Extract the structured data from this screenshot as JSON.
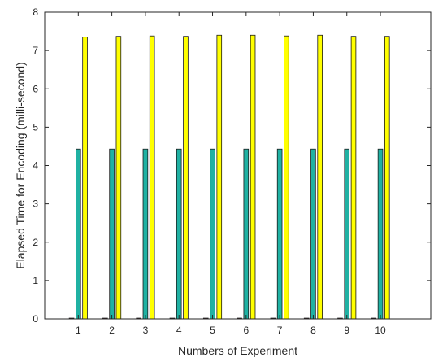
{
  "chart_data": {
    "type": "bar",
    "title": "",
    "xlabel": "Numbers of Experiment",
    "ylabel": "Elapsed Time for Encoding (milli-second)",
    "categories": [
      "1",
      "2",
      "3",
      "4",
      "5",
      "6",
      "7",
      "8",
      "9",
      "10"
    ],
    "xlim": [
      0,
      11.5
    ],
    "ylim": [
      0,
      8
    ],
    "yticks": [
      "0",
      "1",
      "2",
      "3",
      "4",
      "5",
      "6",
      "7",
      "8"
    ],
    "grid": false,
    "legend": "none",
    "series": [
      {
        "values": [
          0.02,
          0.02,
          0.02,
          0.02,
          0.02,
          0.02,
          0.02,
          0.02,
          0.02,
          0.02
        ],
        "color": "#c8102e"
      },
      {
        "values": [
          4.43,
          4.43,
          4.43,
          4.43,
          4.43,
          4.43,
          4.43,
          4.43,
          4.43,
          4.43
        ],
        "color": "#1fb1a3"
      },
      {
        "values": [
          7.35,
          7.37,
          7.38,
          7.37,
          7.4,
          7.4,
          7.38,
          7.4,
          7.37,
          7.37
        ],
        "color": "#ffff00"
      }
    ]
  }
}
